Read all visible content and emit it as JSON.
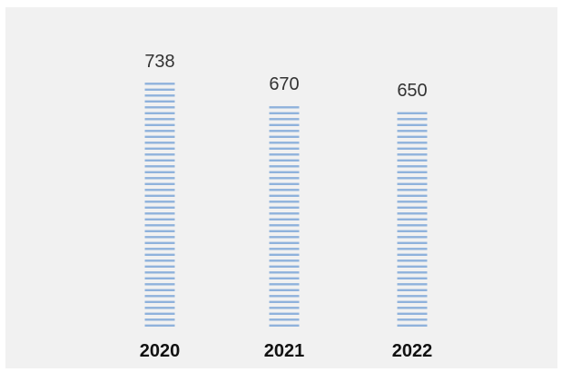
{
  "chart_data": {
    "type": "bar",
    "categories": [
      "2020",
      "2021",
      "2022"
    ],
    "values": [
      738,
      670,
      650
    ],
    "ylim": [
      0,
      1000
    ],
    "grid": false,
    "colors": {
      "bar_stripe": "#8fb2dc",
      "background": "#f1f1f1",
      "value_label": "#333333",
      "category_label": "#111111"
    }
  }
}
